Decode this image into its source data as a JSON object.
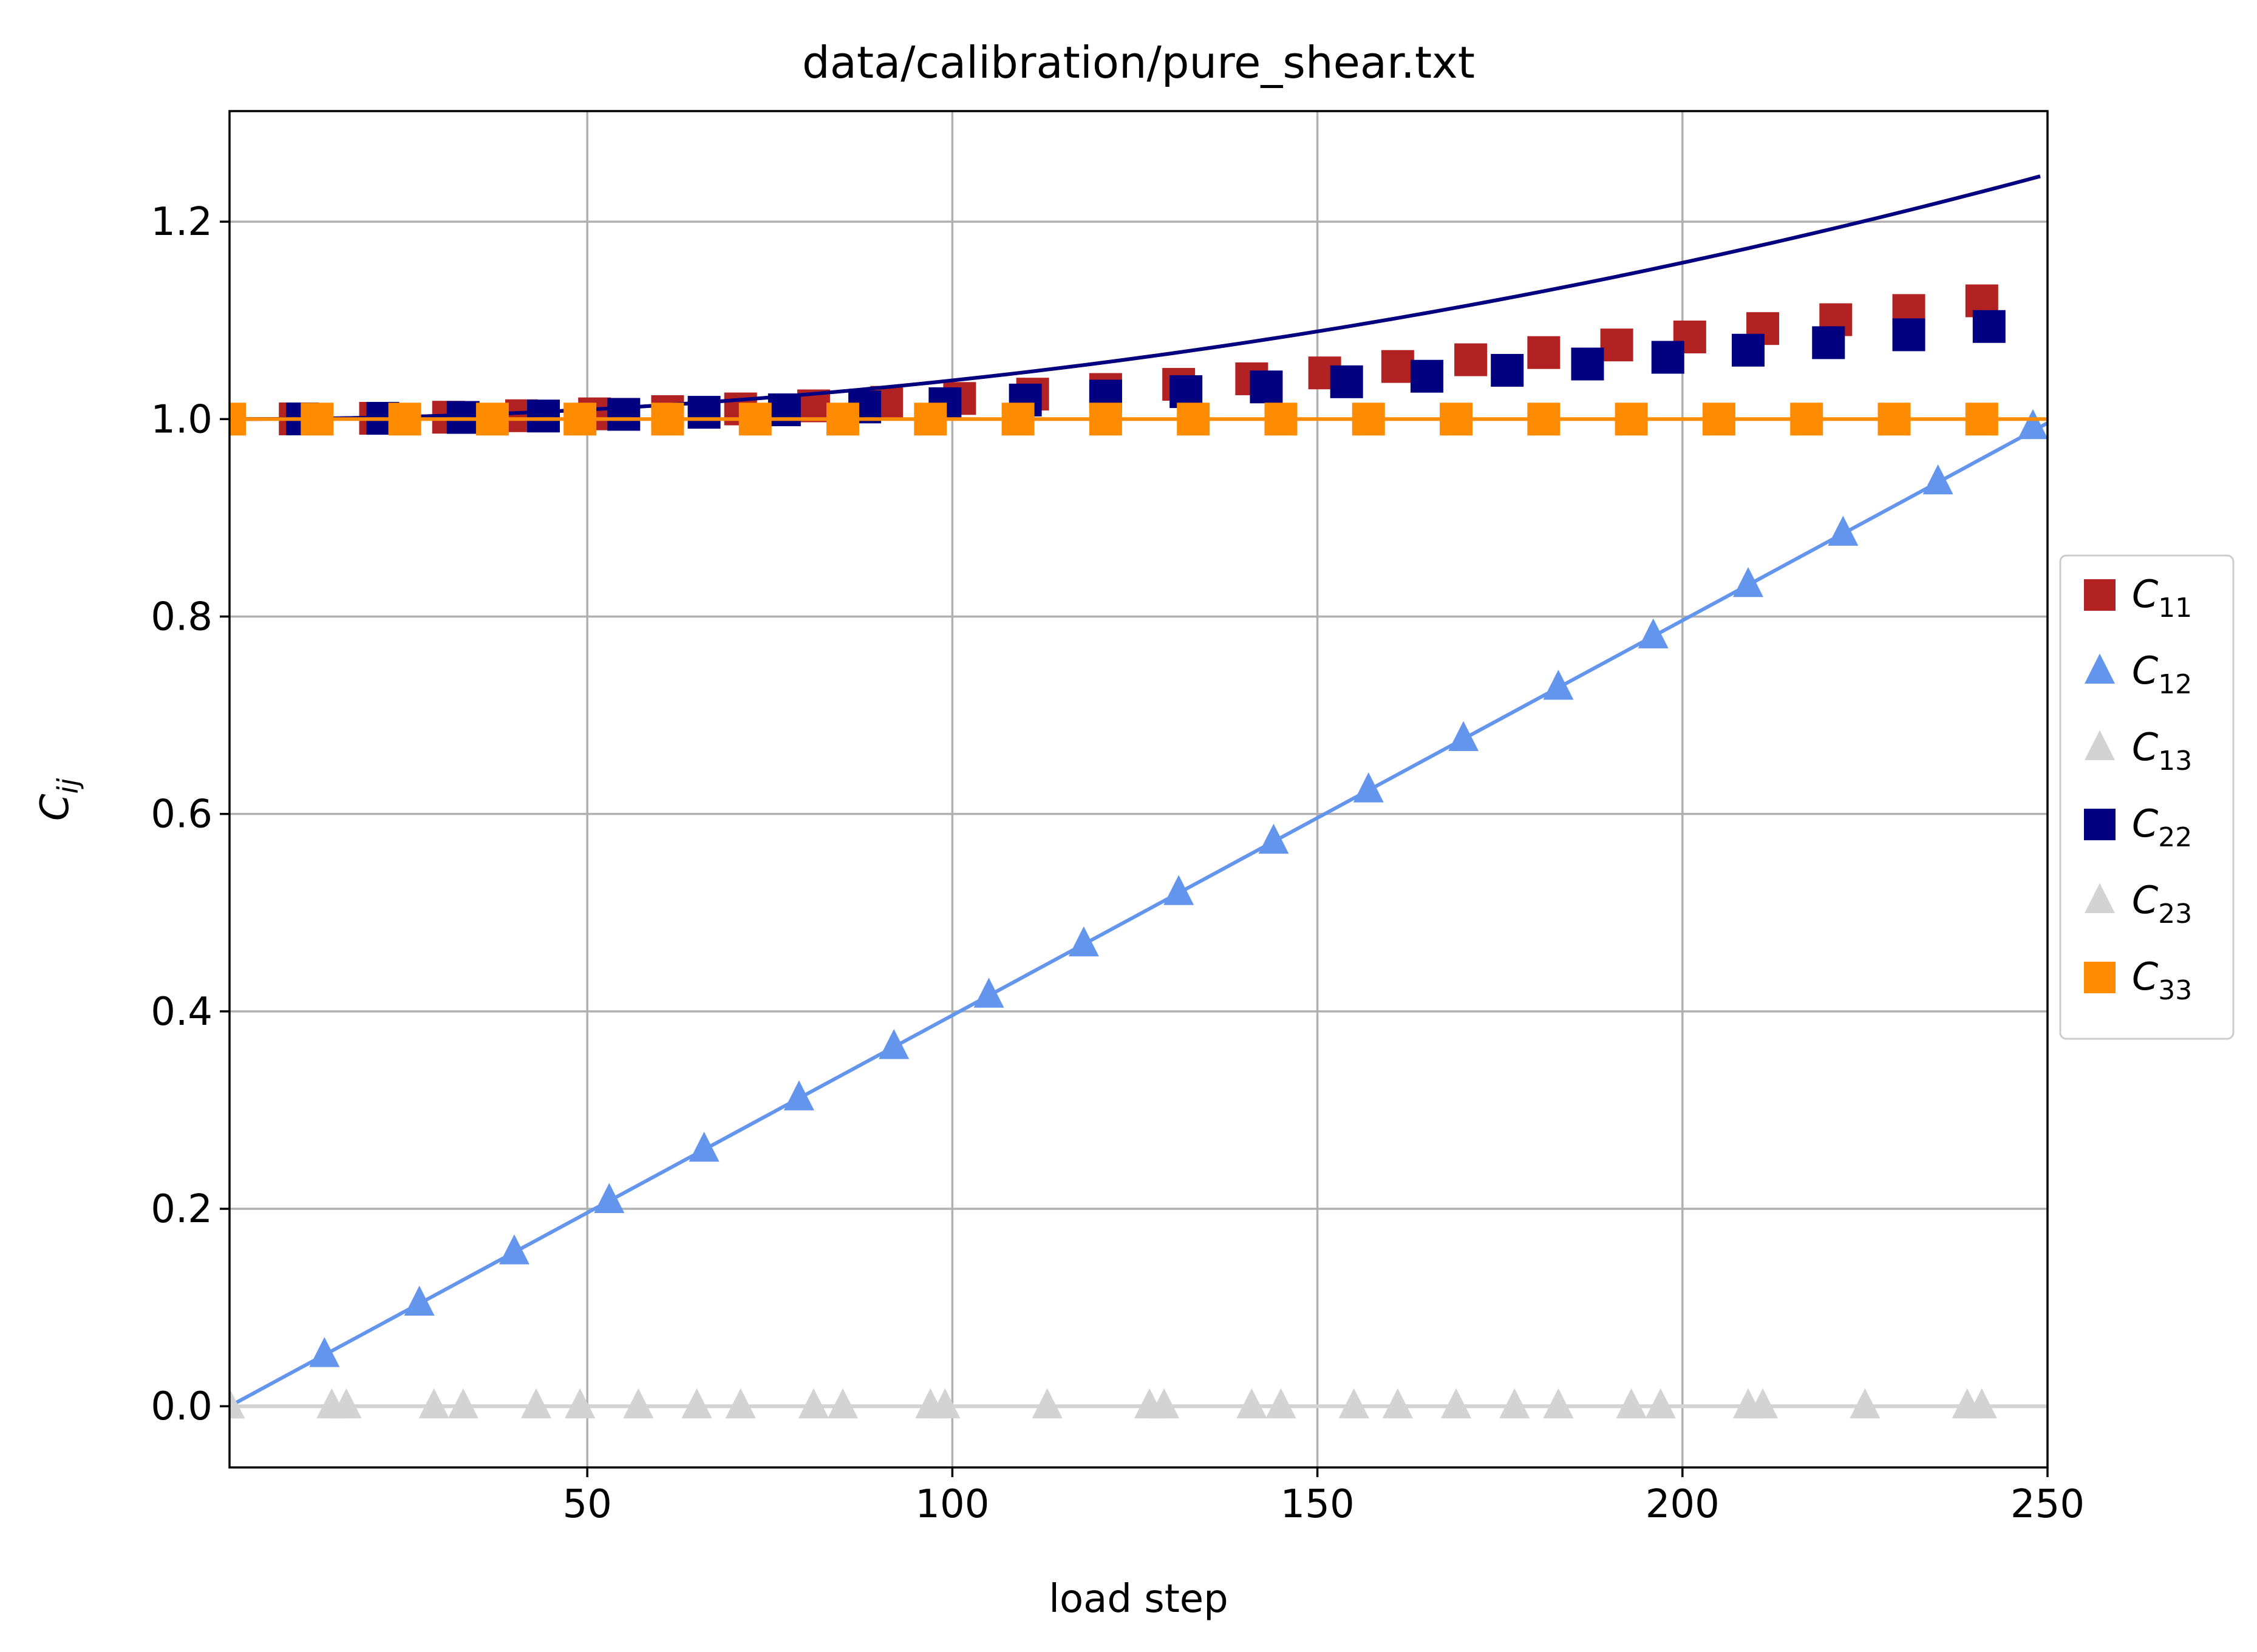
{
  "chart_data": {
    "type": "line",
    "title": "data/calibration/pure_shear.txt",
    "xlabel": "load step",
    "ylabel": {
      "base": "C",
      "sub": "ij"
    },
    "xlim": [
      1,
      250
    ],
    "ylim": [
      -0.062,
      1.312
    ],
    "xticks": [
      50,
      100,
      150,
      200,
      250
    ],
    "xtick_labels": [
      "50",
      "100",
      "150",
      "200",
      "250"
    ],
    "yticks": [
      0.0,
      0.2,
      0.4,
      0.6,
      0.8,
      1.0,
      1.2
    ],
    "ytick_labels": [
      "0.0",
      "0.2",
      "0.4",
      "0.6",
      "0.8",
      "1.0",
      "1.2"
    ],
    "grid": true,
    "legend_position": "right-outside",
    "series": [
      {
        "name": "C11",
        "label_base": "C",
        "label_sub": "11",
        "color": "#b22222",
        "marker": "square",
        "line_color": "#b22222",
        "x": [
          10,
          21,
          31,
          41,
          51,
          61,
          71,
          81,
          91,
          101,
          111,
          121,
          131,
          141,
          151,
          161,
          171,
          181,
          191,
          201,
          211,
          221,
          231,
          241
        ],
        "y": [
          1.0002,
          1.0008,
          1.0019,
          1.0034,
          1.0053,
          1.0076,
          1.0103,
          1.0134,
          1.017,
          1.0209,
          1.0253,
          1.03,
          1.0352,
          1.0408,
          1.0468,
          1.0533,
          1.0601,
          1.0674,
          1.0751,
          1.0832,
          1.0917,
          1.1007,
          1.11,
          1.1198
        ]
      },
      {
        "name": "C12",
        "label_base": "C",
        "label_sub": "12",
        "color": "#6495ed",
        "marker": "triangle",
        "line_color": "#6495ed",
        "x": [
          1,
          14,
          27,
          40,
          53,
          66,
          79,
          92,
          105,
          118,
          131,
          144,
          157,
          170,
          183,
          196,
          209,
          222,
          235,
          248
        ],
        "y": [
          0.0,
          0.052,
          0.104,
          0.156,
          0.208,
          0.26,
          0.312,
          0.364,
          0.416,
          0.468,
          0.52,
          0.572,
          0.624,
          0.676,
          0.728,
          0.78,
          0.832,
          0.884,
          0.936,
          0.992
        ]
      },
      {
        "name": "C13",
        "label_base": "C",
        "label_sub": "13",
        "color": "#d3d3d3",
        "marker": "triangle",
        "line_color": "#d3d3d3",
        "x": [
          1,
          15,
          17,
          29,
          33,
          43,
          49,
          57,
          65,
          71,
          81,
          85,
          97,
          99,
          113,
          127,
          129,
          141,
          145,
          155,
          161,
          169,
          177,
          183,
          193,
          197,
          209,
          211,
          225,
          239,
          241
        ],
        "y": [
          0,
          0,
          0,
          0,
          0,
          0,
          0,
          0,
          0,
          0,
          0,
          0,
          0,
          0,
          0,
          0,
          0,
          0,
          0,
          0,
          0,
          0,
          0,
          0,
          0,
          0,
          0,
          0,
          0,
          0,
          0
        ]
      },
      {
        "name": "C22",
        "label_base": "C",
        "label_sub": "22",
        "color": "#000080",
        "marker": "square",
        "line_color": "#000080",
        "x": [
          11,
          22,
          33,
          44,
          55,
          66,
          77,
          88,
          99,
          110,
          121,
          132,
          143,
          154,
          165,
          176,
          187,
          198,
          209,
          220,
          231,
          242
        ],
        "y": [
          1.0002,
          1.0008,
          1.0017,
          1.0031,
          1.0048,
          1.0069,
          1.0094,
          1.0123,
          1.0156,
          1.0193,
          1.0233,
          1.0278,
          1.0326,
          1.0378,
          1.0434,
          1.0494,
          1.0558,
          1.0626,
          1.0698,
          1.0774,
          1.0854,
          1.0938
        ]
      },
      {
        "name": "C23",
        "label_base": "C",
        "label_sub": "23",
        "color": "#d3d3d3",
        "marker": "triangle",
        "line_color": "#d3d3d3",
        "x": [
          1,
          15,
          17,
          29,
          33,
          43,
          49,
          57,
          65,
          71,
          81,
          85,
          97,
          99,
          113,
          127,
          129,
          141,
          145,
          155,
          161,
          169,
          177,
          183,
          193,
          197,
          209,
          211,
          225,
          239,
          241
        ],
        "y": [
          0,
          0,
          0,
          0,
          0,
          0,
          0,
          0,
          0,
          0,
          0,
          0,
          0,
          0,
          0,
          0,
          0,
          0,
          0,
          0,
          0,
          0,
          0,
          0,
          0,
          0,
          0,
          0,
          0,
          0,
          0
        ]
      },
      {
        "name": "C33",
        "label_base": "C",
        "label_sub": "33",
        "color": "#ff8c00",
        "marker": "square",
        "line_color": "#ff8c00",
        "x": [
          1,
          13,
          25,
          37,
          49,
          61,
          73,
          85,
          97,
          109,
          121,
          133,
          145,
          157,
          169,
          181,
          193,
          205,
          217,
          229,
          241
        ],
        "y": [
          1,
          1,
          1,
          1,
          1,
          1,
          1,
          1,
          1,
          1,
          1,
          1,
          1,
          1,
          1,
          1,
          1,
          1,
          1,
          1,
          1
        ]
      }
    ]
  }
}
